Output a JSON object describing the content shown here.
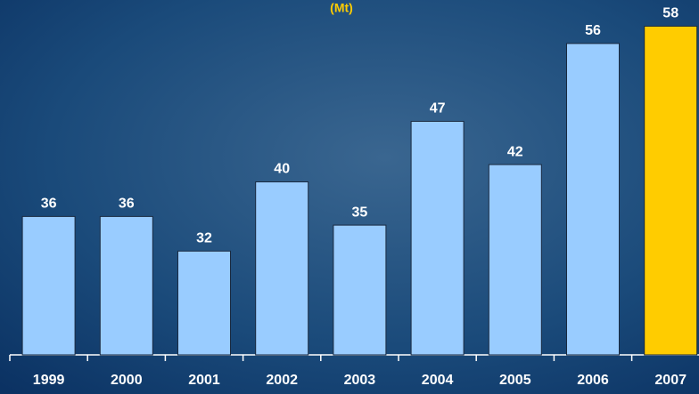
{
  "chart_data": {
    "type": "bar",
    "subtitle": "(Mt)",
    "categories": [
      "1999",
      "2000",
      "2001",
      "2002",
      "2003",
      "2004",
      "2005",
      "2006",
      "2007"
    ],
    "values": [
      36,
      36,
      32,
      40,
      35,
      47,
      42,
      56,
      58
    ],
    "colors": [
      "#99ccff",
      "#99ccff",
      "#99ccff",
      "#99ccff",
      "#99ccff",
      "#99ccff",
      "#99ccff",
      "#99ccff",
      "#ffcc00"
    ],
    "ylim": [
      20,
      60
    ]
  }
}
